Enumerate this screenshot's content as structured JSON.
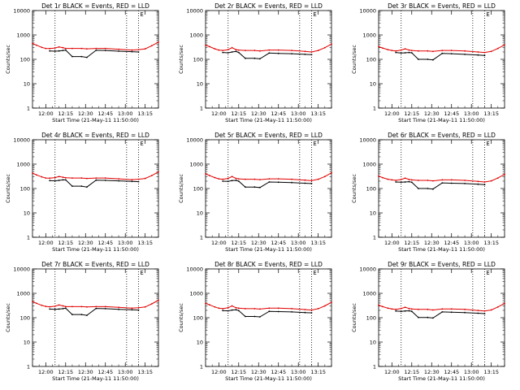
{
  "chart_data": [
    {
      "type": "line",
      "title": "Det 1r BLACK = Events, RED = LLD",
      "xlabel": "Start Time (21-May-11 11:50:00)",
      "ylabel": "Counts/sec",
      "yscale": "log",
      "ylim": [
        1,
        10000
      ],
      "xlim": [
        "11:50",
        "13:25"
      ],
      "x_ticks": [
        "12:00",
        "12:15",
        "12:30",
        "12:45",
        "13:00",
        "13:15"
      ],
      "y_ticks": [
        "1",
        "10",
        "100",
        "1000",
        "10000"
      ],
      "dotted_vlines": [
        "12:07",
        "13:01",
        "13:10"
      ],
      "flag_label": "E",
      "x": [
        "11:50",
        "11:53",
        "11:57",
        "12:00",
        "12:03",
        "12:07",
        "12:10",
        "12:13",
        "12:15",
        "12:20",
        "12:27",
        "12:31",
        "12:38",
        "12:45",
        "12:55",
        "13:05",
        "13:10",
        "13:15",
        "13:20",
        "13:25"
      ],
      "series": [
        {
          "name": "Events",
          "color": "#000000",
          "values": [
            null,
            null,
            null,
            null,
            220,
            215,
            220,
            230,
            240,
            130,
            130,
            120,
            235,
            230,
            215,
            205,
            200,
            null,
            null,
            null
          ]
        },
        {
          "name": "LLD",
          "color": "#e00000",
          "values": [
            450,
            380,
            310,
            280,
            275,
            290,
            320,
            300,
            280,
            280,
            280,
            270,
            280,
            280,
            260,
            240,
            250,
            270,
            360,
            510
          ]
        }
      ]
    },
    {
      "type": "line",
      "title": "Det 2r BLACK = Events, RED = LLD",
      "xlabel": "Start Time (21-May-11 11:50:00)",
      "ylabel": "Counts/sec",
      "yscale": "log",
      "ylim": [
        1,
        10000
      ],
      "xlim": [
        "11:50",
        "13:25"
      ],
      "x_ticks": [
        "12:00",
        "12:15",
        "12:30",
        "12:45",
        "13:00",
        "13:15"
      ],
      "y_ticks": [
        "1",
        "10",
        "100",
        "1000",
        "10000"
      ],
      "dotted_vlines": [
        "12:07",
        "13:01",
        "13:10"
      ],
      "flag_label": "E",
      "x": [
        "11:50",
        "11:53",
        "11:57",
        "12:00",
        "12:03",
        "12:07",
        "12:10",
        "12:13",
        "12:15",
        "12:20",
        "12:27",
        "12:31",
        "12:38",
        "12:45",
        "12:55",
        "13:05",
        "13:10",
        "13:15",
        "13:20",
        "13:25"
      ],
      "series": [
        {
          "name": "Events",
          "color": "#000000",
          "values": [
            null,
            null,
            null,
            null,
            190,
            185,
            200,
            210,
            190,
            110,
            110,
            105,
            180,
            175,
            170,
            160,
            155,
            null,
            null,
            null
          ]
        },
        {
          "name": "LLD",
          "color": "#e00000",
          "values": [
            380,
            330,
            270,
            240,
            230,
            250,
            300,
            250,
            240,
            230,
            230,
            220,
            240,
            240,
            230,
            210,
            200,
            230,
            300,
            420
          ]
        }
      ]
    },
    {
      "type": "line",
      "title": "Det 3r BLACK = Events, RED = LLD",
      "xlabel": "Start Time (21-May-11 11:50:00)",
      "ylabel": "Counts/sec",
      "yscale": "log",
      "ylim": [
        1,
        10000
      ],
      "xlim": [
        "11:50",
        "13:25"
      ],
      "x_ticks": [
        "12:00",
        "12:15",
        "12:30",
        "12:45",
        "13:00",
        "13:15"
      ],
      "y_ticks": [
        "1",
        "10",
        "100",
        "1000",
        "10000"
      ],
      "dotted_vlines": [
        "12:07",
        "13:01",
        "13:10"
      ],
      "flag_label": "E",
      "x": [
        "11:50",
        "11:53",
        "11:57",
        "12:00",
        "12:03",
        "12:07",
        "12:10",
        "12:13",
        "12:15",
        "12:20",
        "12:27",
        "12:31",
        "12:38",
        "12:45",
        "12:55",
        "13:05",
        "13:10",
        "13:15",
        "13:20",
        "13:25"
      ],
      "series": [
        {
          "name": "Events",
          "color": "#000000",
          "values": [
            null,
            null,
            null,
            null,
            190,
            180,
            185,
            190,
            185,
            100,
            100,
            95,
            175,
            170,
            160,
            150,
            145,
            null,
            null,
            null
          ]
        },
        {
          "name": "LLD",
          "color": "#e00000",
          "values": [
            330,
            290,
            250,
            230,
            220,
            240,
            270,
            240,
            230,
            220,
            220,
            210,
            230,
            230,
            220,
            200,
            190,
            210,
            280,
            390
          ]
        }
      ]
    },
    {
      "type": "line",
      "title": "Det 4r BLACK = Events, RED = LLD",
      "xlabel": "Start Time (21-May-11 11:50:00)",
      "ylabel": "Counts/sec",
      "yscale": "log",
      "ylim": [
        1,
        10000
      ],
      "xlim": [
        "11:50",
        "13:25"
      ],
      "x_ticks": [
        "12:00",
        "12:15",
        "12:30",
        "12:45",
        "13:00",
        "13:15"
      ],
      "y_ticks": [
        "1",
        "10",
        "100",
        "1000",
        "10000"
      ],
      "dotted_vlines": [
        "12:07",
        "13:01",
        "13:10"
      ],
      "flag_label": "E",
      "x": [
        "11:50",
        "11:53",
        "11:57",
        "12:00",
        "12:03",
        "12:07",
        "12:10",
        "12:13",
        "12:15",
        "12:20",
        "12:27",
        "12:31",
        "12:38",
        "12:45",
        "12:55",
        "13:05",
        "13:10",
        "13:15",
        "13:20",
        "13:25"
      ],
      "series": [
        {
          "name": "Events",
          "color": "#000000",
          "values": [
            null,
            null,
            null,
            null,
            210,
            205,
            215,
            225,
            225,
            125,
            125,
            115,
            220,
            215,
            205,
            195,
            190,
            null,
            null,
            null
          ]
        },
        {
          "name": "LLD",
          "color": "#e00000",
          "values": [
            430,
            360,
            300,
            270,
            265,
            280,
            310,
            290,
            275,
            270,
            270,
            260,
            270,
            270,
            250,
            230,
            240,
            260,
            340,
            480
          ]
        }
      ]
    },
    {
      "type": "line",
      "title": "Det 5r BLACK = Events, RED = LLD",
      "xlabel": "Start Time (21-May-11 11:50:00)",
      "ylabel": "Counts/sec",
      "yscale": "log",
      "ylim": [
        1,
        10000
      ],
      "xlim": [
        "11:50",
        "13:25"
      ],
      "x_ticks": [
        "12:00",
        "12:15",
        "12:30",
        "12:45",
        "13:00",
        "13:15"
      ],
      "y_ticks": [
        "1",
        "10",
        "100",
        "1000",
        "10000"
      ],
      "dotted_vlines": [
        "12:07",
        "13:01",
        "13:10"
      ],
      "flag_label": "E",
      "x": [
        "11:50",
        "11:53",
        "11:57",
        "12:00",
        "12:03",
        "12:07",
        "12:10",
        "12:13",
        "12:15",
        "12:20",
        "12:27",
        "12:31",
        "12:38",
        "12:45",
        "12:55",
        "13:05",
        "13:10",
        "13:15",
        "13:20",
        "13:25"
      ],
      "series": [
        {
          "name": "Events",
          "color": "#000000",
          "values": [
            null,
            null,
            null,
            null,
            200,
            195,
            210,
            215,
            200,
            115,
            115,
            110,
            185,
            180,
            175,
            165,
            160,
            null,
            null,
            null
          ]
        },
        {
          "name": "LLD",
          "color": "#e00000",
          "values": [
            400,
            340,
            280,
            250,
            240,
            260,
            310,
            260,
            250,
            240,
            240,
            230,
            250,
            250,
            240,
            220,
            210,
            240,
            310,
            440
          ]
        }
      ]
    },
    {
      "type": "line",
      "title": "Det 6r BLACK = Events, RED = LLD",
      "xlabel": "Start Time (21-May-11 11:50:00)",
      "ylabel": "Counts/sec",
      "yscale": "log",
      "ylim": [
        1,
        10000
      ],
      "xlim": [
        "11:50",
        "13:25"
      ],
      "x_ticks": [
        "12:00",
        "12:15",
        "12:30",
        "12:45",
        "13:00",
        "13:15"
      ],
      "y_ticks": [
        "1",
        "10",
        "100",
        "1000",
        "10000"
      ],
      "dotted_vlines": [
        "12:07",
        "13:01",
        "13:10"
      ],
      "flag_label": "E",
      "x": [
        "11:50",
        "11:53",
        "11:57",
        "12:00",
        "12:03",
        "12:07",
        "12:10",
        "12:13",
        "12:15",
        "12:20",
        "12:27",
        "12:31",
        "12:38",
        "12:45",
        "12:55",
        "13:05",
        "13:10",
        "13:15",
        "13:20",
        "13:25"
      ],
      "series": [
        {
          "name": "Events",
          "color": "#000000",
          "values": [
            null,
            null,
            null,
            null,
            185,
            180,
            185,
            190,
            180,
            100,
            100,
            95,
            170,
            165,
            160,
            150,
            145,
            null,
            null,
            null
          ]
        },
        {
          "name": "LLD",
          "color": "#e00000",
          "values": [
            320,
            280,
            240,
            225,
            215,
            235,
            265,
            235,
            225,
            215,
            215,
            205,
            225,
            225,
            215,
            195,
            185,
            205,
            270,
            380
          ]
        }
      ]
    },
    {
      "type": "line",
      "title": "Det 7r BLACK = Events, RED = LLD",
      "xlabel": "Start Time (21-May-11 11:50:00)",
      "ylabel": "Counts/sec",
      "yscale": "log",
      "ylim": [
        1,
        10000
      ],
      "xlim": [
        "11:50",
        "13:25"
      ],
      "x_ticks": [
        "12:00",
        "12:15",
        "12:30",
        "12:45",
        "13:00",
        "13:15"
      ],
      "y_ticks": [
        "1",
        "10",
        "100",
        "1000",
        "10000"
      ],
      "dotted_vlines": [
        "12:07",
        "13:01",
        "13:10"
      ],
      "flag_label": "E",
      "x": [
        "11:50",
        "11:53",
        "11:57",
        "12:00",
        "12:03",
        "12:07",
        "12:10",
        "12:13",
        "12:15",
        "12:20",
        "12:27",
        "12:31",
        "12:38",
        "12:45",
        "12:55",
        "13:05",
        "13:10",
        "13:15",
        "13:20",
        "13:25"
      ],
      "series": [
        {
          "name": "Events",
          "color": "#000000",
          "values": [
            null,
            null,
            null,
            null,
            225,
            220,
            225,
            235,
            245,
            135,
            135,
            125,
            240,
            235,
            220,
            210,
            205,
            null,
            null,
            null
          ]
        },
        {
          "name": "LLD",
          "color": "#e00000",
          "values": [
            460,
            390,
            320,
            290,
            280,
            295,
            330,
            305,
            285,
            285,
            285,
            275,
            285,
            285,
            265,
            245,
            255,
            275,
            370,
            520
          ]
        }
      ]
    },
    {
      "type": "line",
      "title": "Det 8r BLACK = Events, RED = LLD",
      "xlabel": "Start Time (21-May-11 11:50:00)",
      "ylabel": "Counts/sec",
      "yscale": "log",
      "ylim": [
        1,
        10000
      ],
      "xlim": [
        "11:50",
        "13:25"
      ],
      "x_ticks": [
        "12:00",
        "12:15",
        "12:30",
        "12:45",
        "13:00",
        "13:15"
      ],
      "y_ticks": [
        "1",
        "10",
        "100",
        "1000",
        "10000"
      ],
      "dotted_vlines": [
        "12:07",
        "13:01",
        "13:10"
      ],
      "flag_label": "E",
      "x": [
        "11:50",
        "11:53",
        "11:57",
        "12:00",
        "12:03",
        "12:07",
        "12:10",
        "12:13",
        "12:15",
        "12:20",
        "12:27",
        "12:31",
        "12:38",
        "12:45",
        "12:55",
        "13:05",
        "13:10",
        "13:15",
        "13:20",
        "13:25"
      ],
      "series": [
        {
          "name": "Events",
          "color": "#000000",
          "values": [
            null,
            null,
            null,
            null,
            195,
            190,
            205,
            210,
            195,
            112,
            112,
            108,
            182,
            178,
            172,
            162,
            158,
            null,
            null,
            null
          ]
        },
        {
          "name": "LLD",
          "color": "#e00000",
          "values": [
            390,
            335,
            275,
            245,
            235,
            255,
            305,
            255,
            245,
            235,
            235,
            225,
            245,
            245,
            235,
            215,
            205,
            235,
            305,
            430
          ]
        }
      ]
    },
    {
      "type": "line",
      "title": "Det 9r BLACK = Events, RED = LLD",
      "xlabel": "Start Time (21-May-11 11:50:00)",
      "ylabel": "Counts/sec",
      "yscale": "log",
      "ylim": [
        1,
        10000
      ],
      "xlim": [
        "11:50",
        "13:25"
      ],
      "x_ticks": [
        "12:00",
        "12:15",
        "12:30",
        "12:45",
        "13:00",
        "13:15"
      ],
      "y_ticks": [
        "1",
        "10",
        "100",
        "1000",
        "10000"
      ],
      "dotted_vlines": [
        "12:07",
        "13:01",
        "13:10"
      ],
      "flag_label": "E",
      "x": [
        "11:50",
        "11:53",
        "11:57",
        "12:00",
        "12:03",
        "12:07",
        "12:10",
        "12:13",
        "12:15",
        "12:20",
        "12:27",
        "12:31",
        "12:38",
        "12:45",
        "12:55",
        "13:05",
        "13:10",
        "13:15",
        "13:20",
        "13:25"
      ],
      "series": [
        {
          "name": "Events",
          "color": "#000000",
          "values": [
            null,
            null,
            null,
            null,
            188,
            182,
            188,
            192,
            182,
            102,
            102,
            97,
            172,
            167,
            162,
            152,
            147,
            null,
            null,
            null
          ]
        },
        {
          "name": "LLD",
          "color": "#e00000",
          "values": [
            325,
            285,
            245,
            228,
            218,
            238,
            268,
            238,
            228,
            218,
            218,
            208,
            228,
            228,
            218,
            198,
            188,
            208,
            275,
            385
          ]
        }
      ]
    }
  ]
}
